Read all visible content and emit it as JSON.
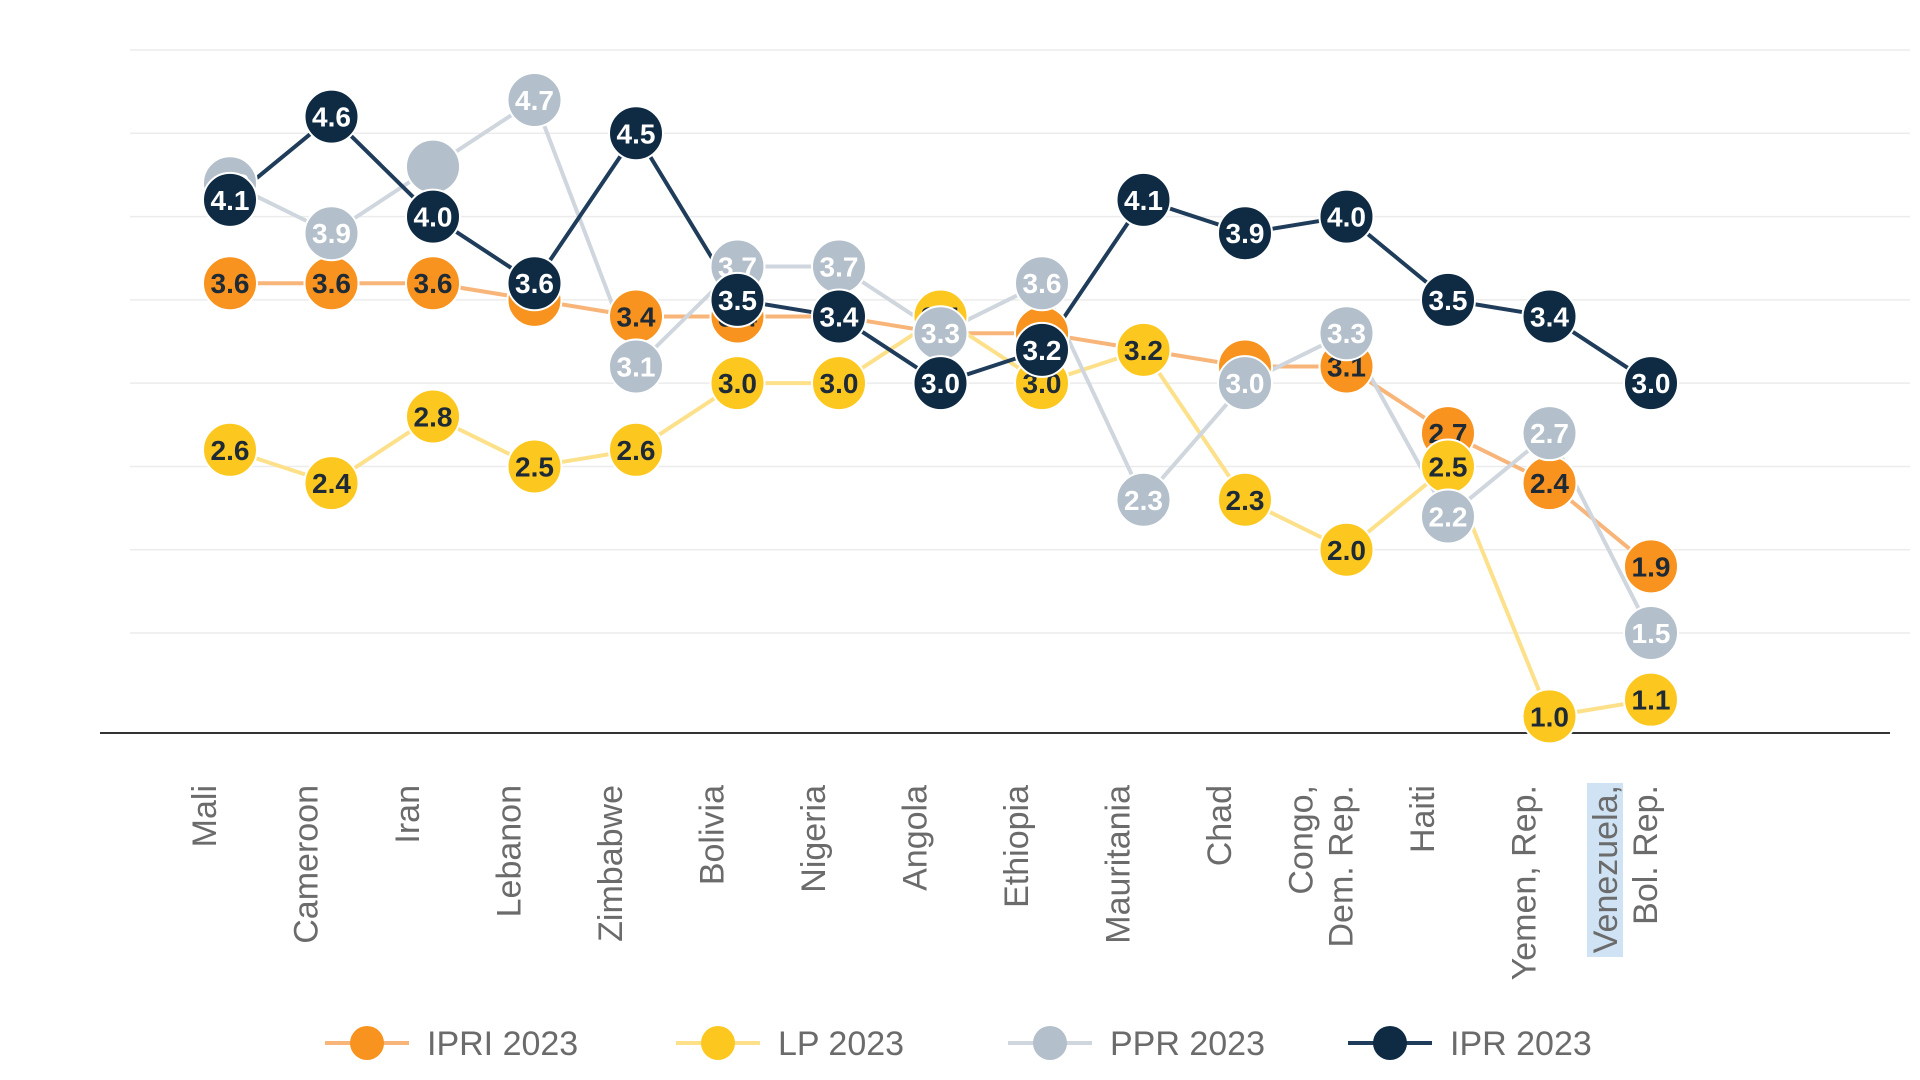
{
  "chart_data": {
    "type": "line",
    "categories": [
      [
        "Mali"
      ],
      [
        "Cameroon"
      ],
      [
        "Iran"
      ],
      [
        "Lebanon"
      ],
      [
        "Zimbabwe"
      ],
      [
        "Bolivia"
      ],
      [
        "Nigeria"
      ],
      [
        "Angola"
      ],
      [
        "Ethiopia"
      ],
      [
        "Mauritania"
      ],
      [
        "Chad"
      ],
      [
        "Congo,",
        "Dem. Rep."
      ],
      [
        "Haiti"
      ],
      [
        "Yemen, Rep."
      ],
      [
        "Venezuela,",
        "Bol. Rep."
      ]
    ],
    "highlighted_category_line": {
      "category": 14,
      "line": 0
    },
    "ylim": [
      0.9,
      5.0
    ],
    "gridlines": [
      1.5,
      2.0,
      2.5,
      3.0,
      3.5,
      4.0,
      4.5,
      5.0
    ],
    "series": [
      {
        "name": "IPRI 2023",
        "color": "#f7931e",
        "line_color": "#f8b57a",
        "text_color": "#1e2a36",
        "values": [
          "3.6",
          "3.6",
          "3.6",
          "3.5",
          "3.4",
          "3.4",
          "3.4",
          "3.3",
          "3.3",
          "3.2",
          "3.1",
          "3.1",
          "2.7",
          "2.4",
          "1.9"
        ],
        "show_labels": [
          true,
          true,
          true,
          false,
          true,
          true,
          false,
          false,
          false,
          false,
          false,
          true,
          true,
          true,
          true
        ]
      },
      {
        "name": "LP 2023",
        "color": "#fcc820",
        "line_color": "#fde08a",
        "text_color": "#1e2a36",
        "values": [
          "2.6",
          "2.4",
          "2.8",
          "2.5",
          "2.6",
          "3.0",
          "3.0",
          "3.4",
          "3.0",
          "3.2",
          "2.3",
          "2.0",
          "2.5",
          "1.0",
          "1.1"
        ],
        "show_labels": [
          true,
          true,
          true,
          true,
          true,
          true,
          true,
          true,
          true,
          true,
          true,
          true,
          true,
          true,
          true
        ]
      },
      {
        "name": "PPR 2023",
        "color": "#b3bfca",
        "line_color": "#cfd6dd",
        "text_color": "#ffffff",
        "values": [
          "4.2",
          "3.9",
          "4.3",
          "4.7",
          "3.1",
          "3.7",
          "3.7",
          "3.3",
          "3.6",
          "2.3",
          "3.0",
          "3.3",
          "2.2",
          "2.7",
          "1.5"
        ],
        "show_labels": [
          true,
          true,
          false,
          true,
          true,
          true,
          true,
          true,
          true,
          true,
          true,
          true,
          true,
          true,
          true
        ]
      },
      {
        "name": "IPR 2023",
        "color": "#0f2b44",
        "line_color": "#1f3d5a",
        "text_color": "#ffffff",
        "values": [
          "4.1",
          "4.6",
          "4.0",
          "3.6",
          "4.5",
          "3.5",
          "3.4",
          "3.0",
          "3.2",
          "4.1",
          "3.9",
          "4.0",
          "3.5",
          "3.4",
          "3.0"
        ],
        "show_labels": [
          true,
          true,
          true,
          true,
          true,
          true,
          true,
          true,
          true,
          true,
          true,
          true,
          true,
          true,
          true
        ]
      }
    ],
    "legend": {
      "position": "bottom",
      "items": [
        "IPRI 2023",
        "LP 2023",
        "PPR 2023",
        "IPR 2023"
      ]
    }
  }
}
